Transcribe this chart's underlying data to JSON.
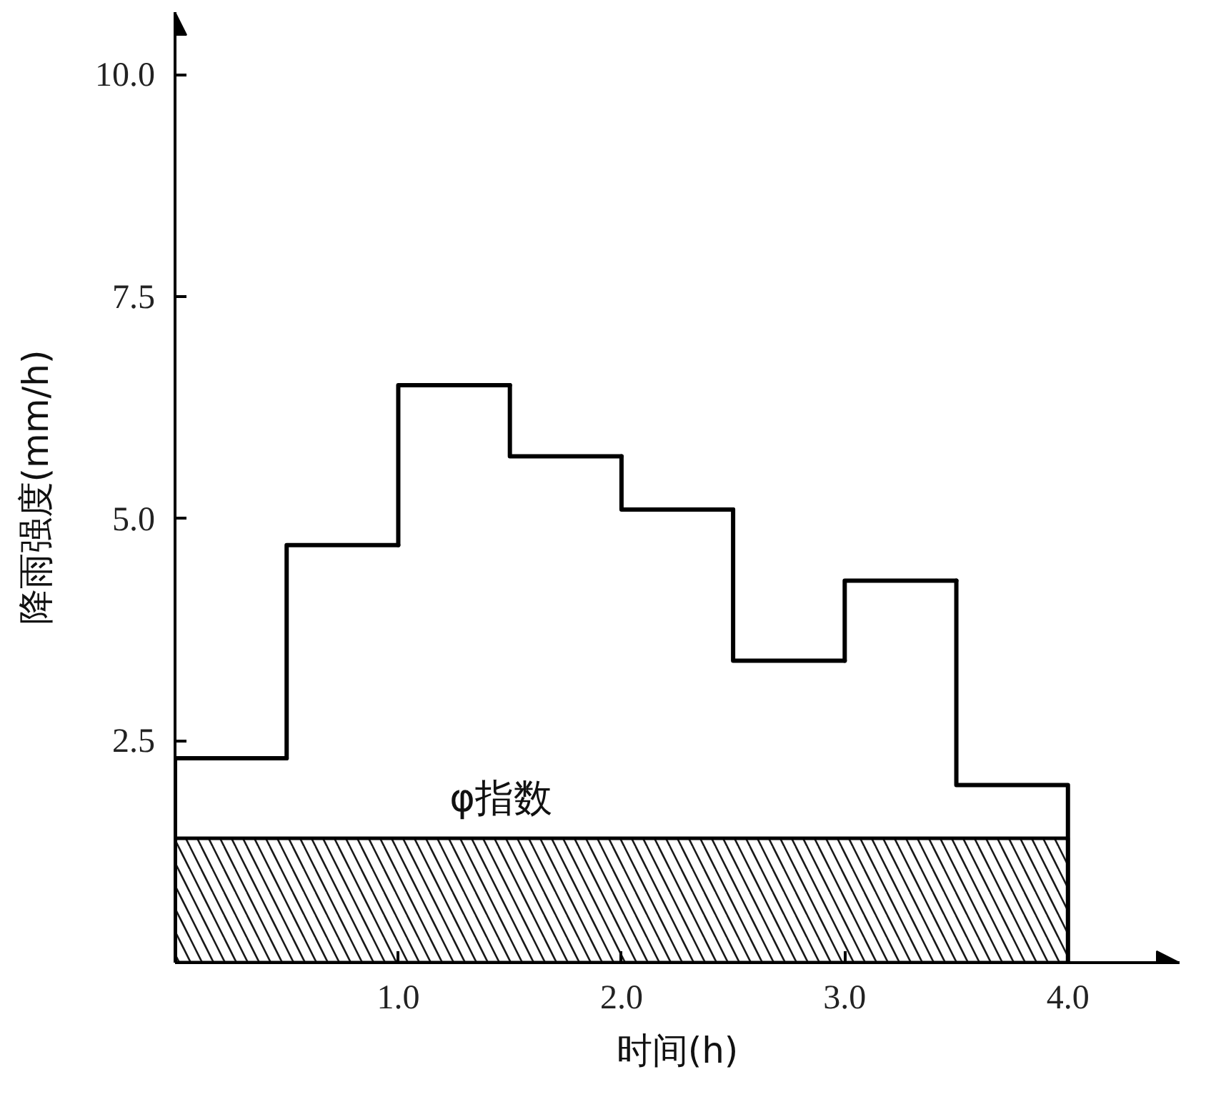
{
  "chart_data": {
    "type": "histogram",
    "xlabel": "时间(h)",
    "ylabel": "降雨强度(mm/h)",
    "bins": [
      0,
      0.5,
      1,
      1.5,
      2,
      2.5,
      3,
      3.5,
      4
    ],
    "series": [
      {
        "values": [
          2.3,
          4.7,
          6.5,
          5.7,
          5.1,
          3.4,
          4.3,
          2.0
        ],
        "color": "#000000"
      },
      {
        "type": "area",
        "name": "φ指数",
        "x": [
          0,
          4
        ],
        "values": [
          1.4,
          1.4
        ],
        "color": "#000000"
      }
    ],
    "xlim": [
      0,
      4.5
    ],
    "ylim": [
      0,
      10.7
    ],
    "xticks": [
      {
        "value": 1,
        "label": "1.0"
      },
      {
        "value": 2,
        "label": "2.0"
      },
      {
        "value": 3,
        "label": "3.0"
      },
      {
        "value": 4,
        "label": "4.0"
      }
    ],
    "yticks": [
      2.5,
      {
        "value": 5,
        "label": "5.0"
      },
      7.5,
      {
        "value": 10,
        "label": "10.0"
      }
    ],
    "grid": false
  }
}
